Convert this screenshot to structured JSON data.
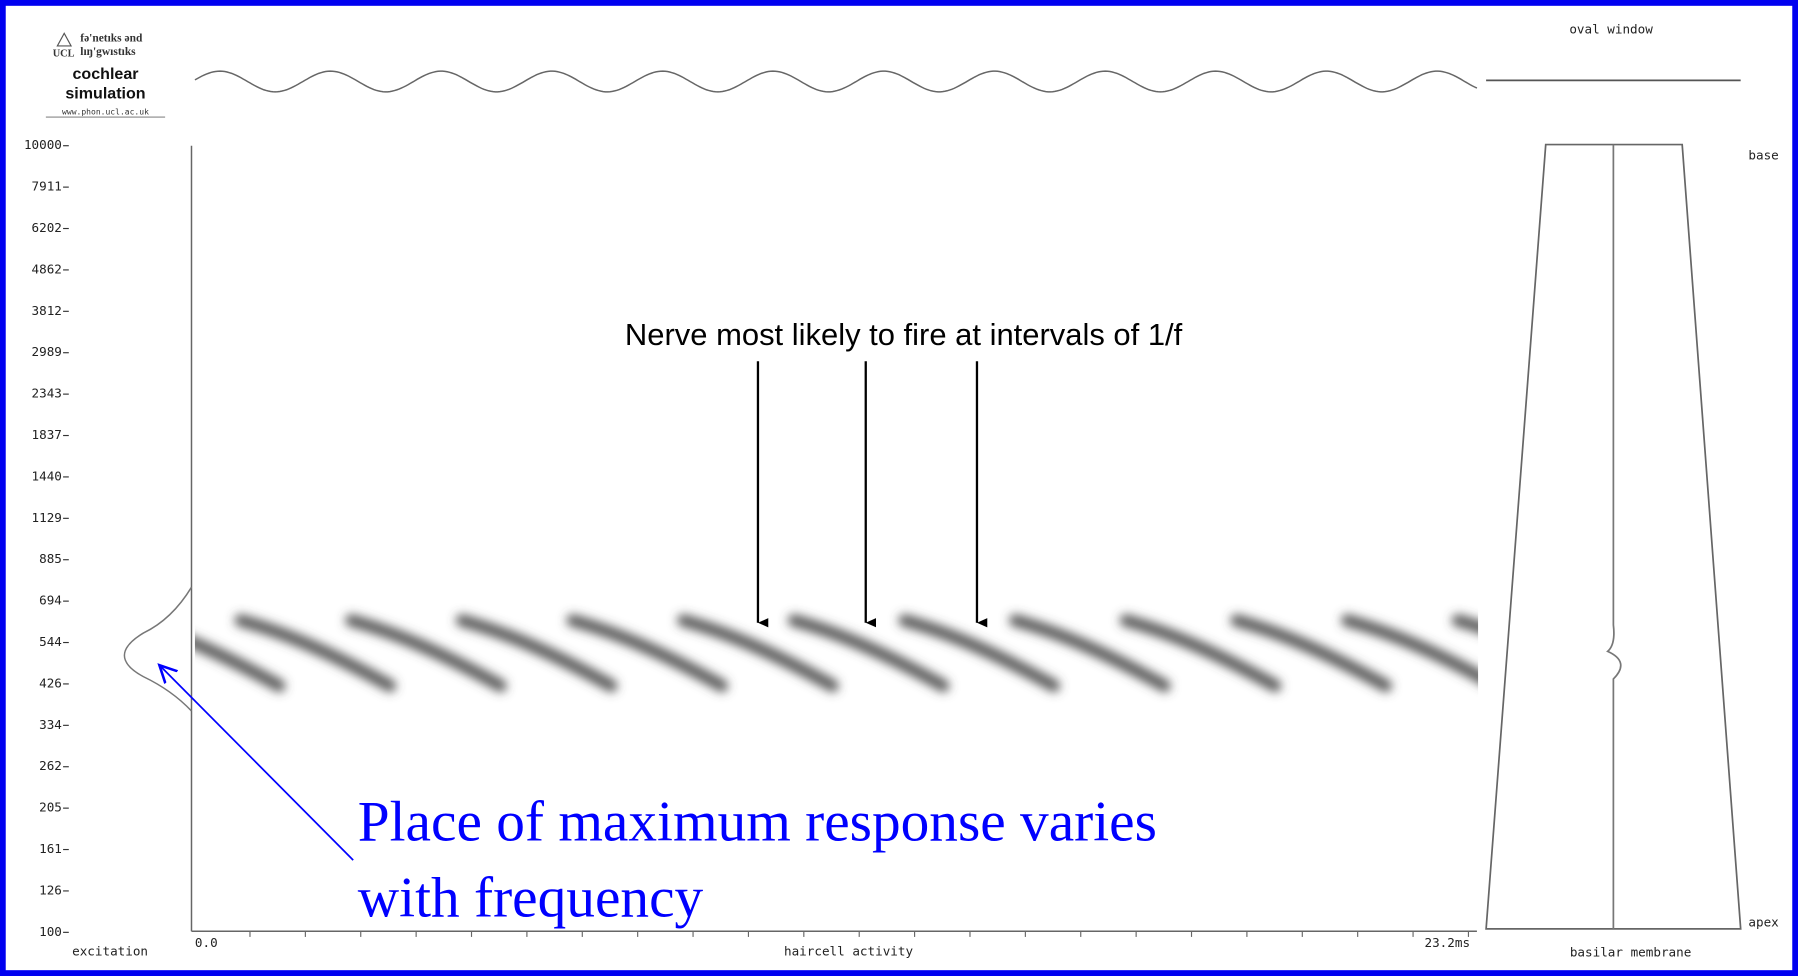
{
  "header": {
    "logo_line1": "fə'netıks ənd",
    "logo_line2": "lıŋ'gwıstıks",
    "logo_mark": "UCL",
    "title_line1": "cochlear",
    "title_line2": "simulation",
    "url": "www.phon.ucl.ac.uk"
  },
  "frequency_axis": {
    "labels": [
      10000,
      7911,
      6202,
      4862,
      3812,
      2989,
      2343,
      1837,
      1440,
      1129,
      885,
      694,
      544,
      426,
      334,
      262,
      205,
      161,
      126,
      100
    ],
    "title": "excitation"
  },
  "time_axis": {
    "start": "0.0",
    "end": "23.2ms",
    "title": "haircell activity"
  },
  "oval_window": "oval window",
  "membrane": {
    "base": "base",
    "apex": "apex",
    "title": "basilar membrane"
  },
  "annotations": {
    "nerve": "Nerve most likely to fire at intervals of 1/f",
    "place_line1": "Place of maximum response varies",
    "place_line2": "with frequency"
  }
}
